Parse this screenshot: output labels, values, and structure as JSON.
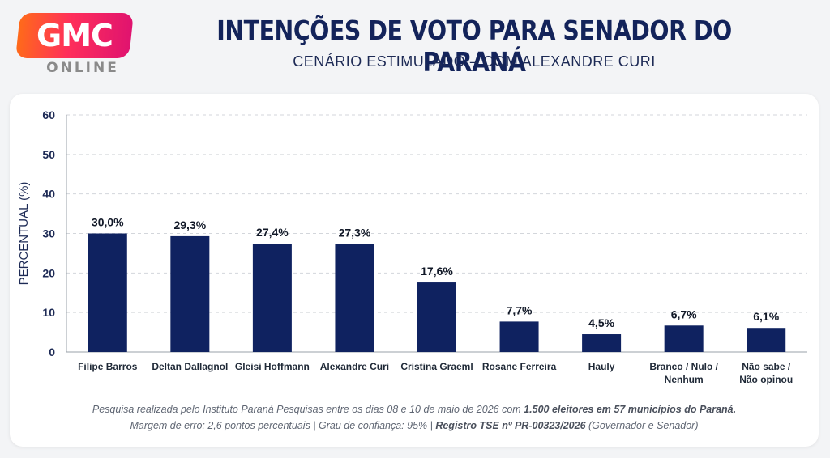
{
  "logo": {
    "main": "GMC",
    "sub": "ONLINE"
  },
  "header": {
    "title": "INTENÇÕES DE VOTO PARA SENADOR DO PARANÁ",
    "subtitle": "CENÁRIO ESTIMULADO – COM ALEXANDRE CURI"
  },
  "colors": {
    "bar": "#0f2260",
    "grid": "#d3d6db",
    "axis": "#1d2a55"
  },
  "chart_data": {
    "type": "bar",
    "categories": [
      "Filipe Barros",
      "Deltan Dallagnol",
      "Gleisi Hoffmann",
      "Alexandre Curi",
      "Cristina Graeml",
      "Rosane Ferreira",
      "Hauly",
      "Branco / Nulo / Nenhum",
      "Não sabe / Não opinou"
    ],
    "category_lines": [
      [
        "Filipe Barros"
      ],
      [
        "Deltan Dallagnol"
      ],
      [
        "Gleisi Hoffmann"
      ],
      [
        "Alexandre Curi"
      ],
      [
        "Cristina Graeml"
      ],
      [
        "Rosane Ferreira"
      ],
      [
        "Hauly"
      ],
      [
        "Branco / Nulo /",
        "Nenhum"
      ],
      [
        "Não sabe /",
        "Não opinou"
      ]
    ],
    "values": [
      30.0,
      29.3,
      27.4,
      27.3,
      17.6,
      7.7,
      4.5,
      6.7,
      6.1
    ],
    "data_labels": [
      "30,0%",
      "29,3%",
      "27,4%",
      "27,3%",
      "17,6%",
      "7,7%",
      "4,5%",
      "6,7%",
      "6,1%"
    ],
    "ylabel": "PERCENTUAL (%)",
    "ylim": [
      0,
      60
    ],
    "yticks": [
      0,
      10,
      20,
      30,
      40,
      50,
      60
    ],
    "grid": true
  },
  "footer": {
    "line1_a": "Pesquisa realizada pelo Instituto Paraná Pesquisas entre os dias 08 e 10 de maio de 2026 com ",
    "line1_b": "1.500 eleitores em 57 municípios do Paraná.",
    "line2_a": "Margem de erro: 2,6 pontos percentuais  |  Grau de confiança: 95%  |  ",
    "line2_b": "Registro TSE nº PR-00323/2026",
    "line2_c": " (Governador e Senador)"
  }
}
